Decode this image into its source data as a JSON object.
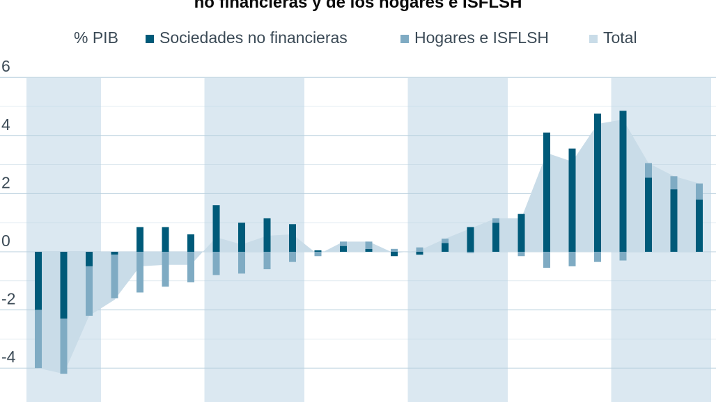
{
  "title": "no financieras y de los hogares e ISFLSH",
  "colors": {
    "corp": "#005a79",
    "hogares": "#7fabc3",
    "total": "#c9dce8",
    "shade": "#dbe8f1",
    "grid": "#b8cfdd",
    "text": "#3b4a56",
    "title": "#0a0a0a"
  },
  "chart_data": {
    "type": "bar",
    "ylabel": "% PIB",
    "ylim": [
      -5,
      6.4
    ],
    "yticks": [
      "6",
      "4",
      "2",
      "0",
      "-2",
      "-4"
    ],
    "ytick_values": [
      6,
      4,
      2,
      0,
      -2,
      -4
    ],
    "legend": {
      "position": "top",
      "unit_label": "% PIB",
      "items": [
        "Sociedades no financieras",
        "Hogares e ISFLSH",
        "Total"
      ]
    },
    "series": [
      {
        "name": "Sociedades no financieras",
        "values": [
          -2.0,
          -2.3,
          -0.5,
          -0.1,
          0.85,
          0.85,
          0.6,
          1.6,
          1.0,
          1.15,
          0.95,
          0.05,
          0.2,
          0.1,
          -0.15,
          -0.1,
          0.3,
          0.85,
          1.0,
          1.3,
          4.1,
          3.55,
          4.75,
          4.85,
          2.55,
          2.15,
          1.8
        ]
      },
      {
        "name": "Hogares e ISFLSH",
        "values": [
          -2.0,
          -1.9,
          -1.7,
          -1.5,
          -1.4,
          -1.2,
          -1.05,
          -0.8,
          -0.75,
          -0.6,
          -0.35,
          -0.15,
          0.15,
          0.25,
          0.1,
          0.15,
          0.15,
          -0.05,
          0.15,
          -0.15,
          -0.55,
          -0.5,
          -0.35,
          -0.3,
          0.5,
          0.45,
          0.55
        ]
      },
      {
        "name": "Total",
        "values": [
          -4.0,
          -4.2,
          -2.2,
          -1.65,
          -0.5,
          -0.45,
          -0.45,
          0.5,
          0.25,
          0.55,
          0.6,
          -0.1,
          0.35,
          0.35,
          -0.05,
          0.05,
          0.45,
          0.8,
          1.15,
          1.15,
          3.4,
          3.1,
          4.4,
          4.55,
          3.05,
          2.6,
          2.35
        ]
      }
    ],
    "shaded_groups": [
      [
        0,
        2
      ],
      [
        7,
        10
      ],
      [
        15,
        18
      ],
      [
        23,
        26
      ]
    ],
    "grid": true
  }
}
